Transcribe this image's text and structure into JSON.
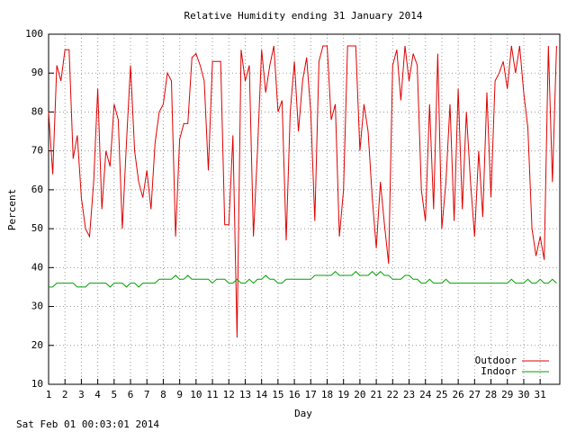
{
  "chart_data": {
    "type": "line",
    "title": "Relative Humidity ending 31 January 2014",
    "x_label": "Day",
    "y_label": "Percent",
    "footer": "Sat Feb 01 00:03:01 2014",
    "xlim": [
      1,
      32.2
    ],
    "ylim": [
      10,
      100
    ],
    "xticks": [
      1,
      2,
      3,
      4,
      5,
      6,
      7,
      8,
      9,
      10,
      11,
      12,
      13,
      14,
      15,
      16,
      17,
      18,
      19,
      20,
      21,
      22,
      23,
      24,
      25,
      26,
      27,
      28,
      29,
      30,
      31
    ],
    "yticks": [
      10,
      20,
      30,
      40,
      50,
      60,
      70,
      80,
      90,
      100
    ],
    "grid": true,
    "legend": "lower right",
    "x": [
      1,
      1.25,
      1.5,
      1.75,
      2,
      2.25,
      2.5,
      2.75,
      3,
      3.25,
      3.5,
      3.75,
      4,
      4.25,
      4.5,
      4.75,
      5,
      5.25,
      5.5,
      5.75,
      6,
      6.25,
      6.5,
      6.75,
      7,
      7.25,
      7.5,
      7.75,
      8,
      8.25,
      8.5,
      8.75,
      9,
      9.25,
      9.5,
      9.75,
      10,
      10.25,
      10.5,
      10.75,
      11,
      11.25,
      11.5,
      11.75,
      12,
      12.25,
      12.5,
      12.75,
      13,
      13.25,
      13.5,
      13.75,
      14,
      14.25,
      14.5,
      14.75,
      15,
      15.25,
      15.5,
      15.75,
      16,
      16.25,
      16.5,
      16.75,
      17,
      17.25,
      17.5,
      17.75,
      18,
      18.25,
      18.5,
      18.75,
      19,
      19.25,
      19.5,
      19.75,
      20,
      20.25,
      20.5,
      20.75,
      21,
      21.25,
      21.5,
      21.75,
      22,
      22.25,
      22.5,
      22.75,
      23,
      23.25,
      23.5,
      23.75,
      24,
      24.25,
      24.5,
      24.75,
      25,
      25.25,
      25.5,
      25.75,
      26,
      26.25,
      26.5,
      26.75,
      27,
      27.25,
      27.5,
      27.75,
      28,
      28.25,
      28.5,
      28.75,
      29,
      29.25,
      29.5,
      29.75,
      30,
      30.25,
      30.5,
      30.75,
      31,
      31.25,
      31.5,
      31.75,
      32
    ],
    "series": [
      {
        "name": "Outdoor",
        "color": "#e00000",
        "values": [
          80,
          64,
          92,
          88,
          96,
          96,
          68,
          74,
          58,
          50,
          48,
          62,
          86,
          55,
          70,
          66,
          82,
          78,
          50,
          72,
          92,
          70,
          62,
          58,
          65,
          55,
          72,
          80,
          82,
          90,
          88,
          48,
          73,
          77,
          77,
          94,
          95,
          92,
          88,
          65,
          93,
          93,
          93,
          51,
          51,
          74,
          22,
          96,
          88,
          92,
          48,
          70,
          96,
          85,
          92,
          97,
          80,
          83,
          47,
          80,
          93,
          75,
          88,
          94,
          80,
          52,
          93,
          97,
          97,
          78,
          82,
          48,
          60,
          97,
          97,
          97,
          70,
          82,
          75,
          58,
          45,
          62,
          51,
          41,
          92,
          96,
          83,
          97,
          88,
          95,
          92,
          60,
          52,
          82,
          55,
          95,
          50,
          62,
          82,
          52,
          86,
          55,
          80,
          62,
          48,
          70,
          53,
          85,
          58,
          88,
          90,
          93,
          86,
          97,
          90,
          97,
          85,
          76,
          50,
          43,
          48,
          42,
          97,
          62,
          97
        ]
      },
      {
        "name": "Indoor",
        "color": "#00a000",
        "values": [
          35,
          35,
          36,
          36,
          36,
          36,
          36,
          35,
          35,
          35,
          36,
          36,
          36,
          36,
          36,
          35,
          36,
          36,
          36,
          35,
          36,
          36,
          35,
          36,
          36,
          36,
          36,
          37,
          37,
          37,
          37,
          38,
          37,
          37,
          38,
          37,
          37,
          37,
          37,
          37,
          36,
          37,
          37,
          37,
          36,
          36,
          37,
          36,
          36,
          37,
          36,
          37,
          37,
          38,
          37,
          37,
          36,
          36,
          37,
          37,
          37,
          37,
          37,
          37,
          37,
          38,
          38,
          38,
          38,
          38,
          39,
          38,
          38,
          38,
          38,
          39,
          38,
          38,
          38,
          39,
          38,
          39,
          38,
          38,
          37,
          37,
          37,
          38,
          38,
          37,
          37,
          36,
          36,
          37,
          36,
          36,
          36,
          37,
          36,
          36,
          36,
          36,
          36,
          36,
          36,
          36,
          36,
          36,
          36,
          36,
          36,
          36,
          36,
          37,
          36,
          36,
          36,
          37,
          36,
          36,
          37,
          36,
          36,
          37,
          36
        ]
      }
    ]
  }
}
